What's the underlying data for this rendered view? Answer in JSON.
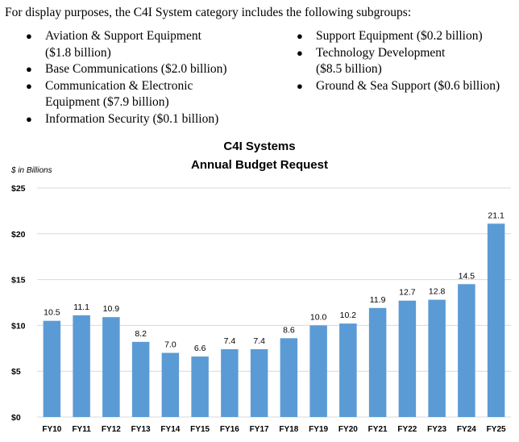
{
  "intro": {
    "text": "For display purposes, the C4I System category includes the following subgroups:",
    "bullet_symbol": "●",
    "left_items": [
      {
        "label": "Aviation & Support Equipment",
        "amount": "($1.8 billion)"
      },
      {
        "label": "Base Communications ($2.0 billion)",
        "amount": ""
      },
      {
        "label": "Communication & Electronic",
        "amount": "Equipment ($7.9 billion)"
      },
      {
        "label": "Information Security ($0.1 billion)",
        "amount": ""
      }
    ],
    "right_items": [
      {
        "label": "Support Equipment ($0.2 billion)",
        "amount": ""
      },
      {
        "label": "Technology Development",
        "amount": "($8.5 billion)"
      },
      {
        "label": "Ground & Sea Support ($0.6 billion)",
        "amount": ""
      }
    ]
  },
  "chart_data": {
    "type": "bar",
    "title_line1": "C4I Systems",
    "title_line2": "Annual Budget Request",
    "ylabel": "$ in Billions",
    "xlabel": "",
    "categories": [
      "FY10",
      "FY11",
      "FY12",
      "FY13",
      "FY14",
      "FY15",
      "FY16",
      "FY17",
      "FY18",
      "FY19",
      "FY20",
      "FY21",
      "FY22",
      "FY23",
      "FY24",
      "FY25"
    ],
    "values": [
      10.5,
      11.1,
      10.9,
      8.2,
      7.0,
      6.6,
      7.4,
      7.4,
      8.6,
      10.0,
      10.2,
      11.9,
      12.7,
      12.8,
      14.5,
      21.1
    ],
    "value_labels": [
      "10.5",
      "11.1",
      "10.9",
      "8.2",
      "7.0",
      "6.6",
      "7.4",
      "7.4",
      "8.6",
      "10.0",
      "10.2",
      "11.9",
      "12.7",
      "12.8",
      "14.5",
      "21.1"
    ],
    "ylim": [
      0,
      25
    ],
    "yticks": [
      0,
      5,
      10,
      15,
      20,
      25
    ],
    "ytick_labels": [
      "$0",
      "$5",
      "$10",
      "$15",
      "$20",
      "$25"
    ],
    "grid": true,
    "legend": "none",
    "bar_color": "#5b9bd5",
    "grid_color": "#d9d9d9"
  }
}
